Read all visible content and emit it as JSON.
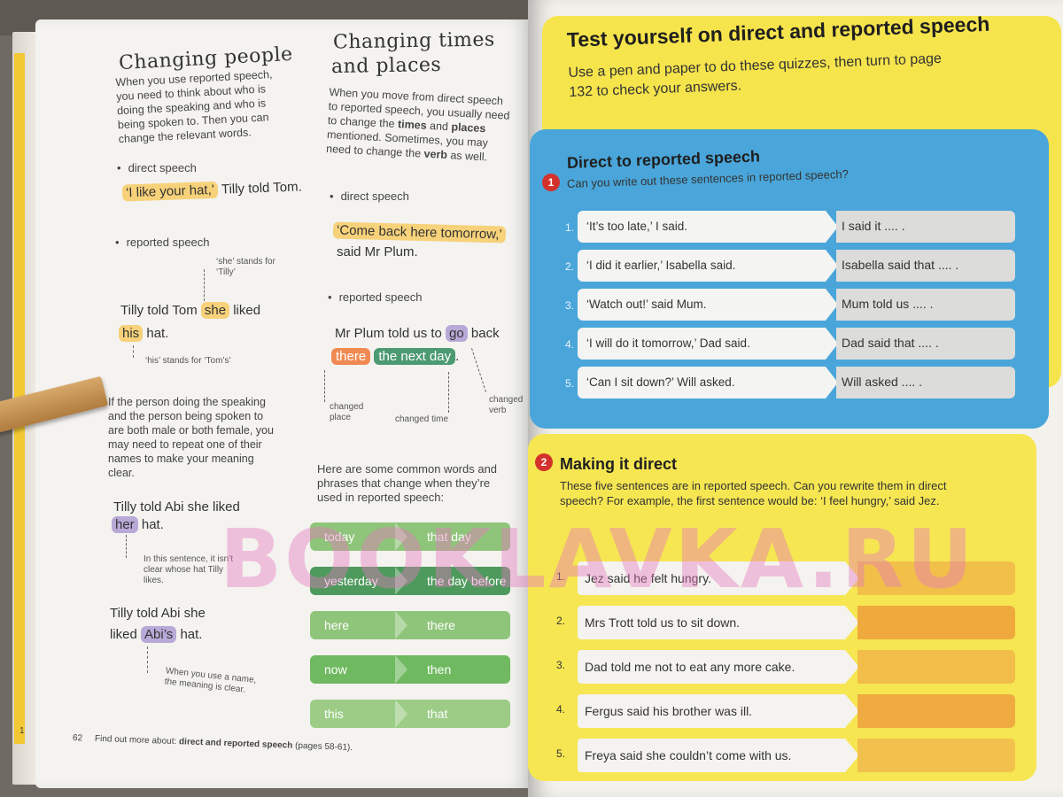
{
  "left_page": {
    "changing_people": {
      "heading": "Changing people",
      "intro": "When you use reported speech, you need to think about who is doing the speaking and who is being spoken to. Then you can change the relevant words.",
      "bullet_direct": "direct speech",
      "direct_quote": "‘I like your hat,’",
      "direct_rest": " Tilly told Tom.",
      "bullet_reported": "reported speech",
      "note_she": "‘she’ stands for ‘Tilly’",
      "rep_line1_pre": "Tilly told Tom ",
      "rep_she": "she",
      "rep_line1_post": " liked",
      "rep_his": "his",
      "rep_line2_post": " hat.",
      "note_his": "‘his’ stands for ‘Tom’s’",
      "para2": "If the person doing the speaking and the person being spoken to are both male or both female, you may need to repeat one of their names to make your meaning clear.",
      "ex1_line1": "Tilly told Abi she liked",
      "ex1_her": "her",
      "ex1_post": " hat.",
      "note_her": "In this sentence, it isn’t clear whose hat Tilly likes.",
      "ex2_line1": "Tilly told Abi she",
      "ex2_pre": "liked ",
      "ex2_abis": "Abi’s",
      "ex2_post": " hat.",
      "note_name": "When you use a name, the meaning is clear."
    },
    "changing_times": {
      "heading_line1": "Changing times",
      "heading_line2": "and places",
      "intro_a": "When you move from direct speech to reported speech, you usually need to change the ",
      "intro_times": "times",
      "intro_b": " and ",
      "intro_places": "places",
      "intro_c": " mentioned. Sometimes, you may need to change the ",
      "intro_verb": "verb",
      "intro_d": " as well.",
      "bullet_direct": "direct speech",
      "direct_quote": "‘Come back here tomorrow,’",
      "direct_rest": "said Mr Plum.",
      "bullet_reported": "reported speech",
      "rep_pre": "Mr Plum told us to ",
      "rep_go": "go",
      "rep_post": " back",
      "rep_there": "there",
      "rep_nextday": "the next day",
      "rep_end": ".",
      "note_place": "changed place",
      "note_time": "changed time",
      "note_verb": "changed verb",
      "common_intro": "Here are some common words and phrases that change when they’re used in reported speech:",
      "word_pairs": [
        {
          "from": "today",
          "to": "that day"
        },
        {
          "from": "yesterday",
          "to": "the day before"
        },
        {
          "from": "here",
          "to": "there"
        },
        {
          "from": "now",
          "to": "then"
        },
        {
          "from": "this",
          "to": "that"
        }
      ],
      "pair_colors": [
        "#8fc57a",
        "#4e9a5c",
        "#8fc57a",
        "#6fb960",
        "#9ccc86"
      ]
    },
    "footer": {
      "page_number": "62",
      "text_pre": "Find out more about: ",
      "text_bold": "direct and reported speech",
      "text_post": " (pages 58-61)."
    },
    "side_page_number": "1"
  },
  "right_page": {
    "title": "Test yourself on direct and reported speech",
    "subtitle": "Use a pen and paper to do these quizzes, then turn to page 132 to check your answers.",
    "quiz1": {
      "number": "1",
      "title": "Direct to reported speech",
      "question": "Can you write out these sentences in reported speech?",
      "items": [
        {
          "n": "1.",
          "direct": "‘It’s too late,’ I said.",
          "prompt": "I said it .... ."
        },
        {
          "n": "2.",
          "direct": "‘I did it earlier,’ Isabella said.",
          "prompt": "Isabella said that .... ."
        },
        {
          "n": "3.",
          "direct": "‘Watch out!’ said Mum.",
          "prompt": "Mum told us .... ."
        },
        {
          "n": "4.",
          "direct": "‘I will do it tomorrow,’ Dad said.",
          "prompt": "Dad said that .... ."
        },
        {
          "n": "5.",
          "direct": "‘Can I sit down?’ Will asked.",
          "prompt": "Will asked .... ."
        }
      ]
    },
    "quiz2": {
      "number": "2",
      "title": "Making it direct",
      "question": "These five sentences are in reported speech. Can you rewrite them in direct speech? For example, the first sentence would be: ‘I feel hungry,’ said Jez.",
      "items": [
        {
          "n": "1.",
          "text": "Jez said he felt hungry."
        },
        {
          "n": "2.",
          "text": "Mrs Trott told us to sit down."
        },
        {
          "n": "3.",
          "text": "Dad told me not to eat any more cake."
        },
        {
          "n": "4.",
          "text": "Fergus said his brother was ill."
        },
        {
          "n": "5.",
          "text": "Freya said she couldn’t come with us."
        }
      ],
      "answer_colors": [
        "#f2c049",
        "#efa93d",
        "#f2bd48",
        "#efab40",
        "#f2c04c"
      ]
    }
  },
  "watermark": "BOOKLAVKA.RU"
}
